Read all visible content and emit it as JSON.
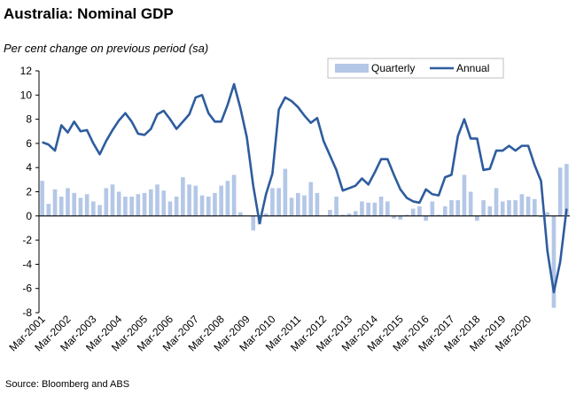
{
  "chart_data": {
    "type": "bar",
    "title": "Australia: Nominal GDP",
    "subtitle": "Per cent change on previous period (sa)",
    "source": "Source: Bloomberg and ABS",
    "ylim": [
      -8,
      12
    ],
    "yticks": [
      -8,
      -6,
      -4,
      -2,
      0,
      2,
      4,
      6,
      8,
      10,
      12
    ],
    "x_labels": [
      "Mar-2001",
      "Mar-2002",
      "Mar-2003",
      "Mar-2004",
      "Mar-2005",
      "Mar-2006",
      "Mar-2007",
      "Mar-2008",
      "Mar-2009",
      "Mar-2010",
      "Mar-2011",
      "Mar-2012",
      "Mar-2013",
      "Mar-2014",
      "Mar-2015",
      "Mar-2016",
      "Mar-2017",
      "Mar-2018",
      "Mar-2019",
      "Mar-2020"
    ],
    "legend": {
      "position": "top-right"
    },
    "grid": false,
    "series": [
      {
        "name": "Quarterly",
        "type": "bar",
        "color": "#b4c7e7",
        "values": [
          2.9,
          1.0,
          2.2,
          1.6,
          2.3,
          1.9,
          1.5,
          1.8,
          1.2,
          0.9,
          2.3,
          2.6,
          2.0,
          1.6,
          1.6,
          1.8,
          1.9,
          2.2,
          2.6,
          2.1,
          1.2,
          1.6,
          3.2,
          2.6,
          2.5,
          1.7,
          1.6,
          1.9,
          2.5,
          2.9,
          3.4,
          0.3,
          0.0,
          -1.2,
          -0.7,
          0.2,
          2.3,
          2.3,
          3.9,
          1.5,
          1.9,
          1.7,
          2.8,
          1.9,
          0.0,
          0.5,
          1.6,
          0.1,
          0.2,
          0.4,
          1.2,
          1.1,
          1.1,
          1.6,
          1.2,
          -0.2,
          -0.3,
          0.1,
          0.6,
          0.8,
          -0.4,
          1.2,
          0.1,
          0.8,
          1.3,
          1.3,
          3.4,
          2.0,
          -0.4,
          1.3,
          0.8,
          2.3,
          1.2,
          1.3,
          1.3,
          1.8,
          1.6,
          1.4,
          -0.1,
          0.3,
          -7.6,
          4.0,
          4.3
        ]
      },
      {
        "name": "Annual",
        "type": "line",
        "color": "#2e5c9e",
        "values": [
          6.1,
          5.9,
          5.4,
          7.5,
          6.9,
          7.8,
          7.0,
          7.1,
          6.0,
          5.1,
          6.2,
          7.1,
          7.9,
          8.5,
          7.8,
          6.8,
          6.7,
          7.2,
          8.4,
          8.7,
          8.0,
          7.2,
          7.8,
          8.4,
          9.8,
          10.0,
          8.5,
          7.8,
          7.8,
          9.2,
          10.9,
          8.9,
          6.5,
          2.5,
          -0.6,
          1.8,
          3.5,
          8.8,
          9.8,
          9.5,
          9.0,
          8.3,
          7.7,
          8.1,
          6.2,
          5.0,
          3.8,
          2.1,
          2.3,
          2.5,
          3.1,
          2.6,
          3.6,
          4.7,
          4.7,
          3.4,
          2.2,
          1.5,
          1.2,
          1.1,
          2.2,
          1.8,
          1.7,
          3.2,
          3.4,
          6.6,
          8.0,
          6.4,
          6.4,
          3.8,
          3.9,
          5.4,
          5.4,
          5.8,
          5.4,
          5.8,
          5.8,
          4.2,
          2.9,
          -2.9,
          -6.3,
          -3.8,
          0.6
        ]
      }
    ]
  }
}
